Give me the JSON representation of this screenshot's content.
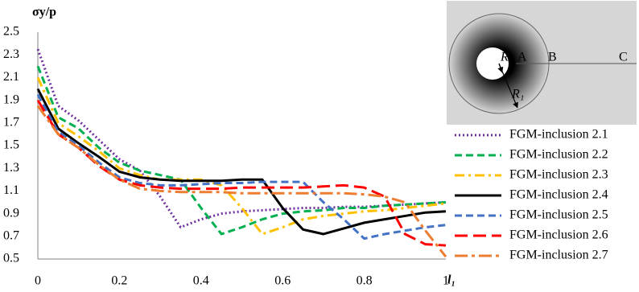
{
  "chart_data": {
    "type": "line",
    "y_label": "σy/p",
    "x_label": "l₁",
    "x": [
      0,
      0.05,
      0.1,
      0.15,
      0.2,
      0.25,
      0.3,
      0.35,
      0.4,
      0.45,
      0.5,
      0.55,
      0.6,
      0.65,
      0.7,
      0.75,
      0.8,
      0.85,
      0.9,
      0.95,
      1
    ],
    "xlim": [
      0,
      1
    ],
    "xticks": [
      0,
      0.2,
      0.4,
      0.6,
      0.8,
      1
    ],
    "ylim": [
      0.5,
      2.5
    ],
    "yticks": [
      0.5,
      0.7,
      0.9,
      1.1,
      1.3,
      1.5,
      1.7,
      1.9,
      2.1,
      2.3,
      2.5
    ],
    "grid": false,
    "legend": "lower-right",
    "series": [
      {
        "name": "FGM-inclusion 2.1",
        "color": "#7030a0",
        "dash": "dotted",
        "values": [
          2.35,
          1.85,
          1.72,
          1.55,
          1.38,
          1.28,
          1.05,
          0.78,
          0.85,
          0.9,
          0.92,
          0.93,
          0.94,
          0.95,
          0.95,
          0.96,
          0.96,
          0.97,
          0.98,
          0.99,
          1.0
        ]
      },
      {
        "name": "FGM-inclusion 2.2",
        "color": "#00b050",
        "dash": "dashed",
        "values": [
          2.2,
          1.75,
          1.65,
          1.48,
          1.35,
          1.28,
          1.24,
          1.2,
          0.95,
          0.72,
          0.78,
          0.85,
          0.9,
          0.92,
          0.93,
          0.95,
          0.95,
          0.97,
          0.98,
          0.99,
          1.0
        ]
      },
      {
        "name": "FGM-inclusion 2.3",
        "color": "#ffc000",
        "dash": "dash-dot",
        "values": [
          2.1,
          1.7,
          1.58,
          1.45,
          1.3,
          1.24,
          1.2,
          1.2,
          1.2,
          1.15,
          0.95,
          0.72,
          0.78,
          0.85,
          0.88,
          0.9,
          0.92,
          0.93,
          0.95,
          0.97,
          0.99
        ]
      },
      {
        "name": "FGM-inclusion 2.4",
        "color": "#000000",
        "dash": "solid",
        "values": [
          2.0,
          1.65,
          1.52,
          1.4,
          1.27,
          1.22,
          1.2,
          1.19,
          1.19,
          1.19,
          1.2,
          1.2,
          0.95,
          0.76,
          0.72,
          0.77,
          0.82,
          0.85,
          0.88,
          0.91,
          0.92
        ]
      },
      {
        "name": "FGM-inclusion 2.5",
        "color": "#4472c4",
        "dash": "dashed",
        "values": [
          1.95,
          1.62,
          1.5,
          1.35,
          1.22,
          1.17,
          1.15,
          1.15,
          1.16,
          1.17,
          1.17,
          1.18,
          1.18,
          1.18,
          1.0,
          0.85,
          0.68,
          0.72,
          0.75,
          0.78,
          0.8
        ]
      },
      {
        "name": "FGM-inclusion 2.6",
        "color": "#ff0000",
        "dash": "long-dash",
        "values": [
          1.9,
          1.6,
          1.48,
          1.32,
          1.2,
          1.15,
          1.13,
          1.12,
          1.12,
          1.12,
          1.13,
          1.13,
          1.13,
          1.13,
          1.14,
          1.15,
          1.13,
          1.05,
          0.72,
          0.63,
          0.62
        ]
      },
      {
        "name": "FGM-inclusion 2.7",
        "color": "#ed7d31",
        "dash": "long-dash-dot",
        "values": [
          1.85,
          1.6,
          1.48,
          1.33,
          1.2,
          1.12,
          1.1,
          1.09,
          1.09,
          1.09,
          1.08,
          1.08,
          1.08,
          1.08,
          1.08,
          1.08,
          1.07,
          1.05,
          1.0,
          0.75,
          0.52
        ]
      }
    ],
    "inset_labels": {
      "R": "R",
      "A": "A",
      "B": "B",
      "C": "C",
      "R1": "R₁"
    }
  }
}
